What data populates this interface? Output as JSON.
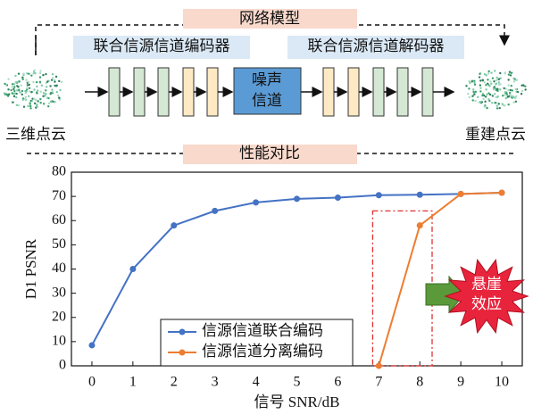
{
  "diagram": {
    "title": "网络模型",
    "encoder": "联合信源信道编码器",
    "decoder": "联合信源信道解码器",
    "channel": [
      "噪声",
      "信道"
    ],
    "input": "三维点云",
    "output": "重建点云",
    "compare": "性能对比"
  },
  "chart_data": {
    "type": "line",
    "xlabel": "信号 SNR/dB",
    "ylabel": "D1 PSNR",
    "x": [
      0,
      1,
      2,
      3,
      4,
      5,
      6,
      7,
      8,
      9,
      10
    ],
    "series": [
      {
        "name": "信源信道联合编码",
        "color": "#4472c4",
        "values": [
          8.5,
          40,
          58,
          64,
          67.5,
          69,
          69.5,
          70.5,
          70.7,
          71,
          71.5
        ]
      },
      {
        "name": "信源信道分离编码",
        "color": "#ed7d31",
        "values": [
          null,
          null,
          null,
          null,
          null,
          null,
          null,
          0,
          58,
          71,
          71.5
        ]
      }
    ],
    "xlim": [
      -0.5,
      10.5
    ],
    "xticks": [
      0,
      1,
      2,
      3,
      4,
      5,
      6,
      7,
      8,
      9,
      10
    ],
    "ylim": [
      0,
      80
    ],
    "yticks": [
      0,
      10,
      20,
      30,
      40,
      50,
      60,
      70,
      80
    ],
    "annotation": [
      "悬崖",
      "效应"
    ],
    "legend": "lower center"
  }
}
